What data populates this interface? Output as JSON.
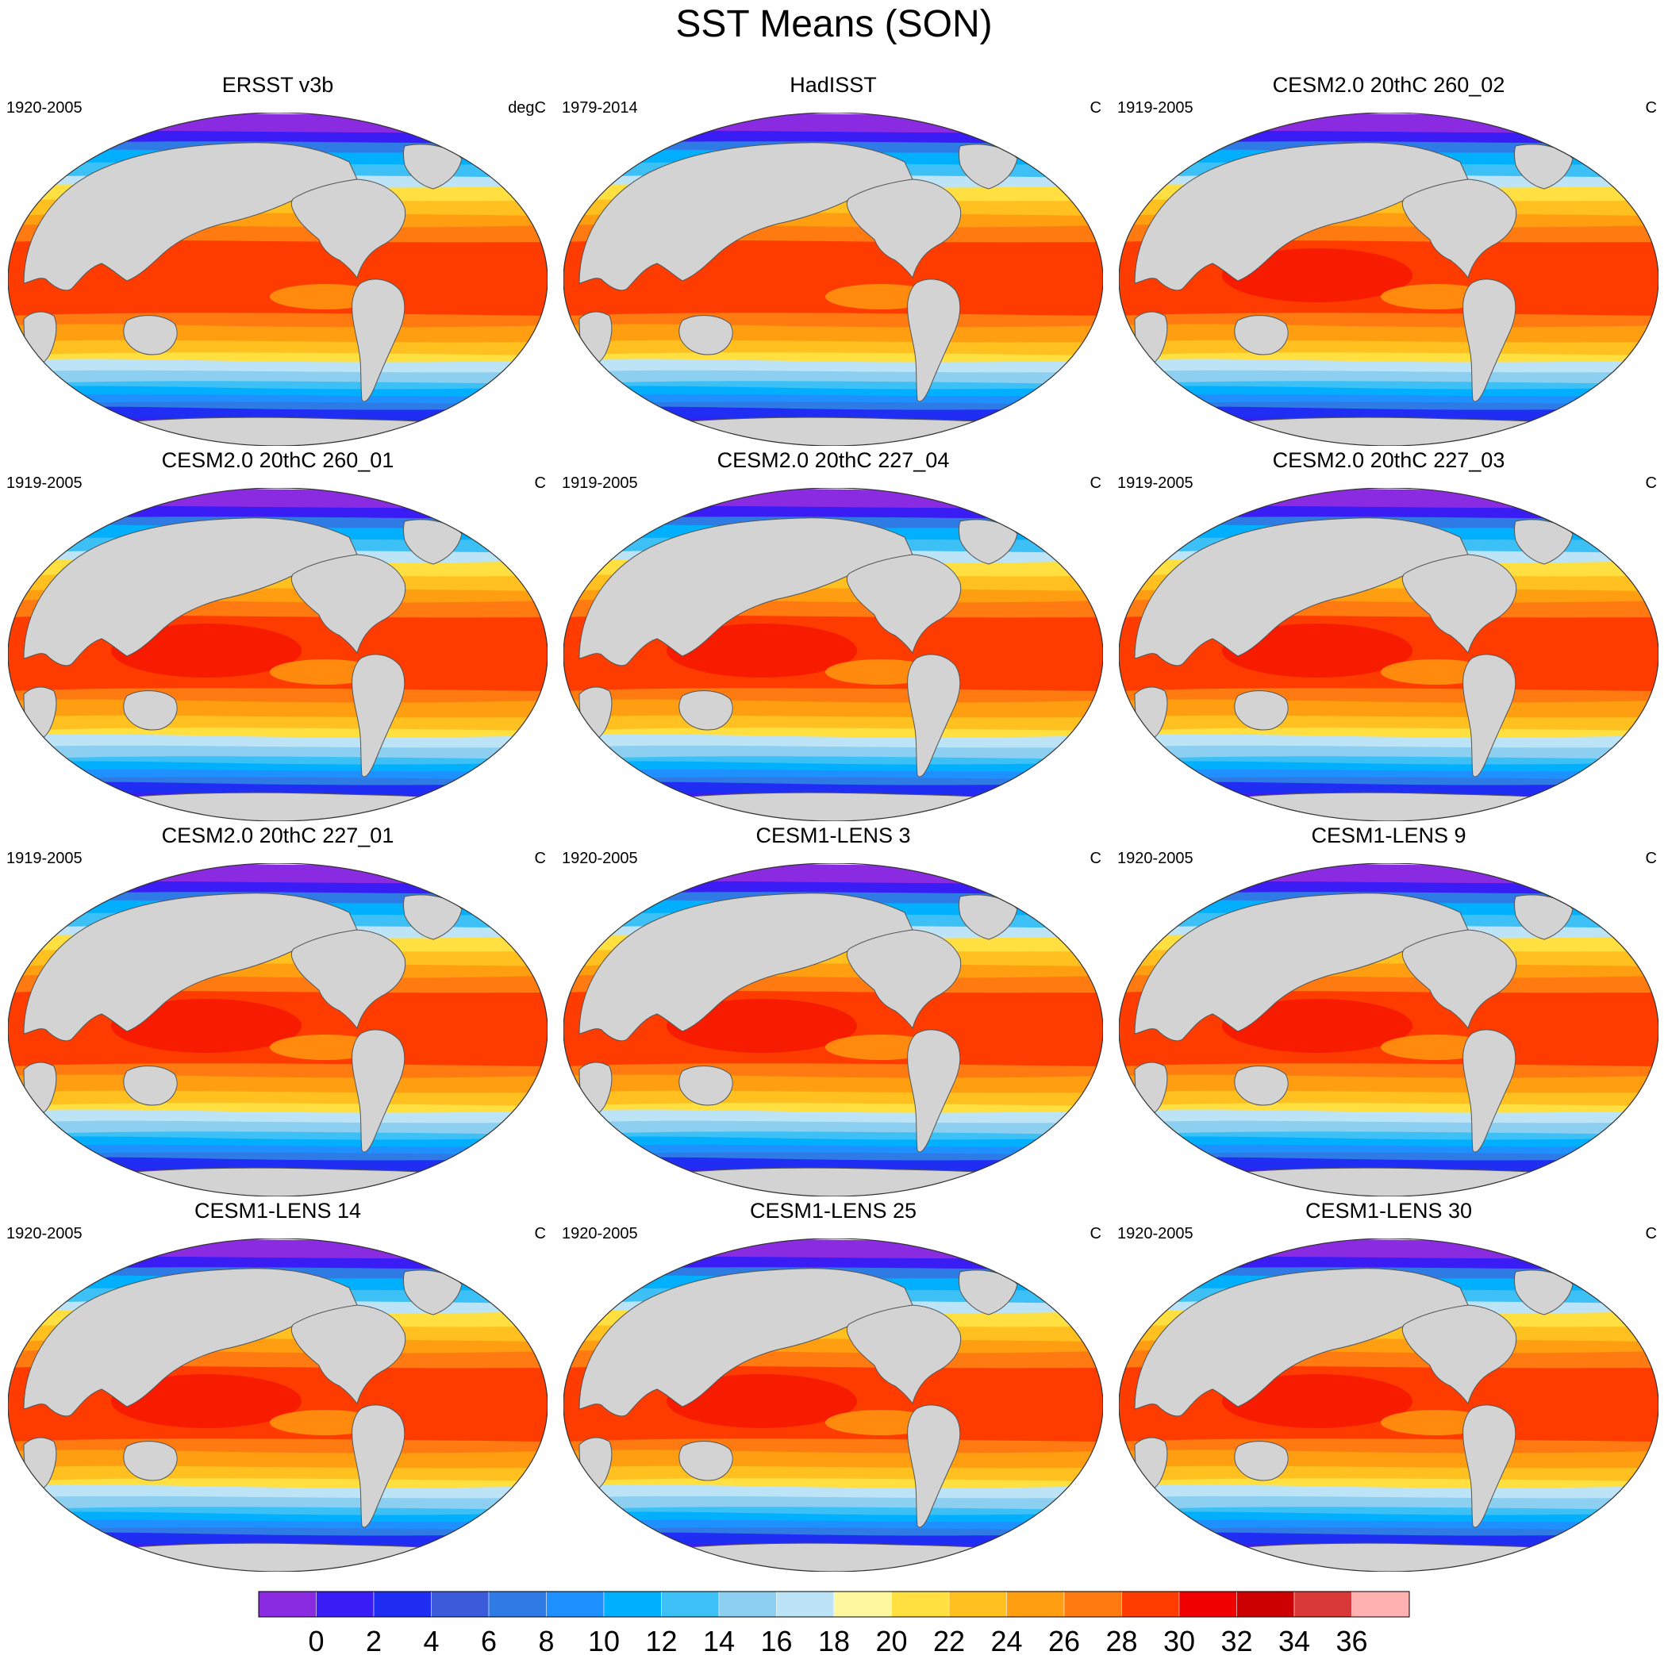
{
  "title": "SST Means (SON)",
  "panels": [
    {
      "name": "ERSST v3b",
      "period": "1920-2005",
      "units": "degC"
    },
    {
      "name": "HadISST",
      "period": "1979-2014",
      "units": "C"
    },
    {
      "name": "CESM2.0 20thC 260_02",
      "period": "1919-2005",
      "units": "C"
    },
    {
      "name": "CESM2.0 20thC 260_01",
      "period": "1919-2005",
      "units": "C"
    },
    {
      "name": "CESM2.0 20thC 227_04",
      "period": "1919-2005",
      "units": "C"
    },
    {
      "name": "CESM2.0 20thC 227_03",
      "period": "1919-2005",
      "units": "C"
    },
    {
      "name": "CESM2.0 20thC 227_01",
      "period": "1919-2005",
      "units": "C"
    },
    {
      "name": "CESM1-LENS 3",
      "period": "1920-2005",
      "units": "C"
    },
    {
      "name": "CESM1-LENS 9",
      "period": "1920-2005",
      "units": "C"
    },
    {
      "name": "CESM1-LENS 14",
      "period": "1920-2005",
      "units": "C"
    },
    {
      "name": "CESM1-LENS 25",
      "period": "1920-2005",
      "units": "C"
    },
    {
      "name": "CESM1-LENS 30",
      "period": "1920-2005",
      "units": "C"
    }
  ],
  "colorbar": {
    "labels": [
      "0",
      "2",
      "4",
      "6",
      "8",
      "10",
      "12",
      "14",
      "16",
      "18",
      "20",
      "22",
      "24",
      "26",
      "28",
      "30",
      "32",
      "34",
      "36"
    ],
    "colors": [
      "#8a2be2",
      "#3a1cf5",
      "#1f2ef2",
      "#3b5bdb",
      "#2f7be6",
      "#1e90ff",
      "#00b0ff",
      "#3cc0f5",
      "#8ccff0",
      "#bde3f7",
      "#fff6a0",
      "#ffe040",
      "#ffc020",
      "#ff9e10",
      "#ff7a10",
      "#ff3c00",
      "#f00000",
      "#cc0000",
      "#d83838",
      "#ffb0b0"
    ]
  }
}
